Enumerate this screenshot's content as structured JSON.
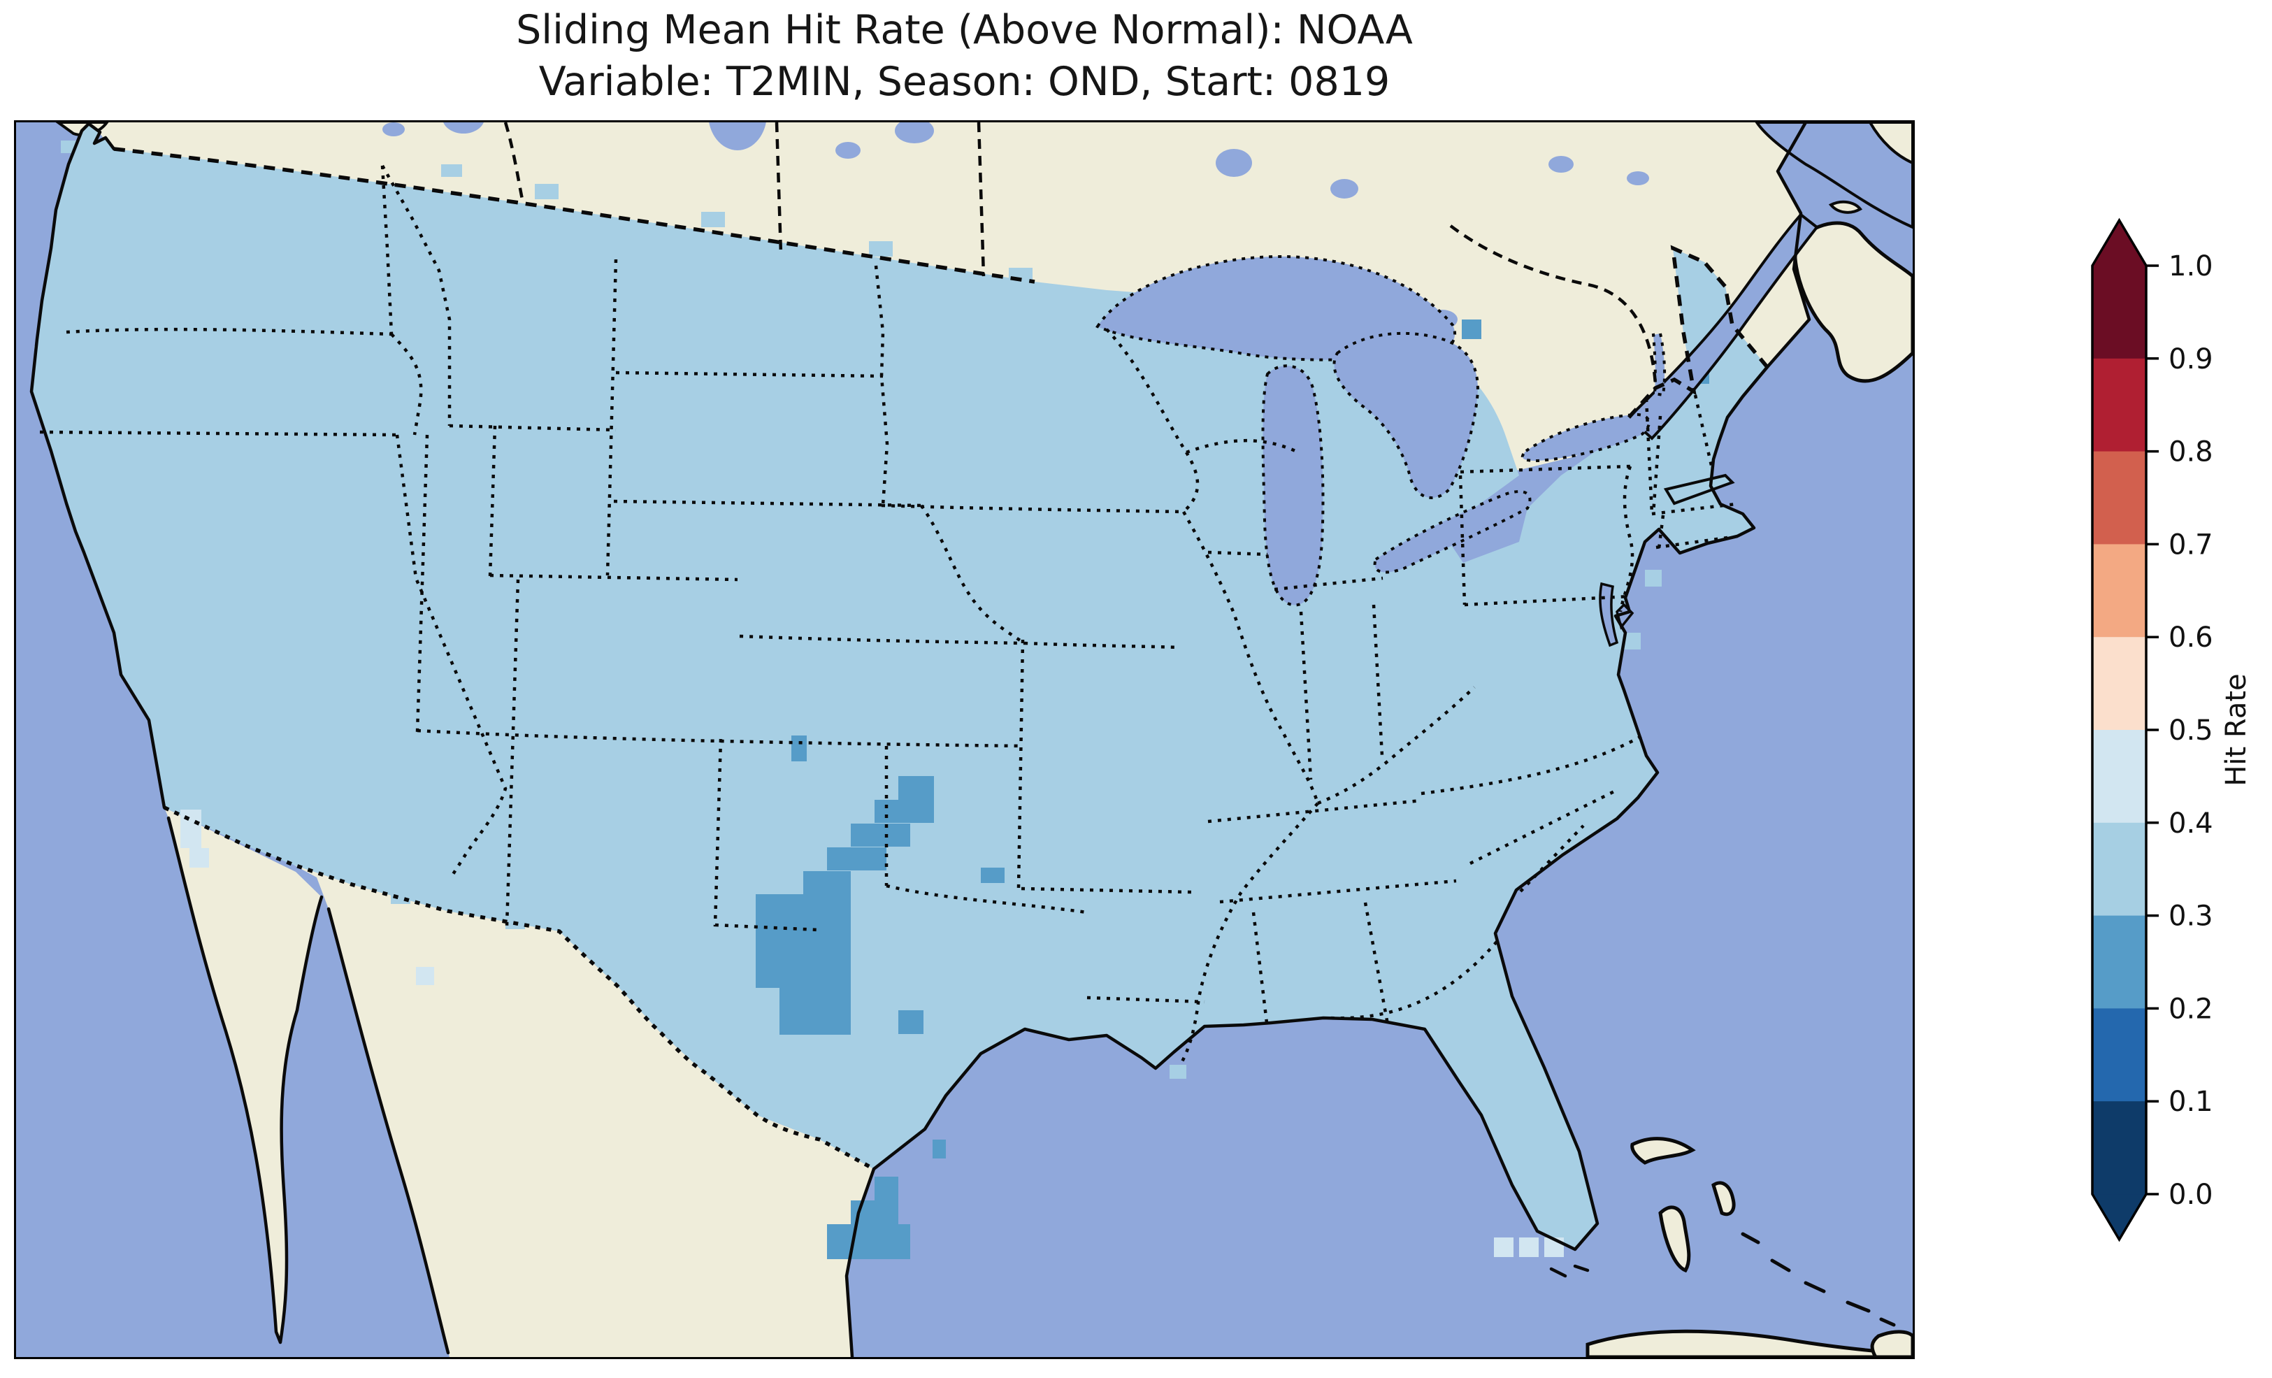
{
  "title": {
    "line1": "Sliding Mean Hit Rate (Above Normal): NOAA",
    "line2": "Variable: T2MIN, Season: OND, Start: 0819"
  },
  "colorbar": {
    "label": "Hit Rate",
    "ticks": [
      "1.0",
      "0.9",
      "0.8",
      "0.7",
      "0.6",
      "0.5",
      "0.4",
      "0.3",
      "0.2",
      "0.1",
      "0.0"
    ],
    "segment_colors_top_to_bottom": [
      "#6B0D24",
      "#B01F32",
      "#D2604E",
      "#F3A983",
      "#FBDFCC",
      "#D2E6F1",
      "#A6CFE3",
      "#569CC8",
      "#2468AE",
      "#0E3B69"
    ],
    "over_arrow_color": "#6B0D24",
    "under_arrow_color": "#0E3B69"
  },
  "map": {
    "colors": {
      "ocean": "#90A8DB",
      "land": "#EFEDDA",
      "us_base": "#A7CFE4",
      "hit_02_03": "#569CC8",
      "hit_04_05": "#D2E6F1",
      "line": "#0A0A0A"
    },
    "patches": {
      "dark": [
        [
          1262,
          935,
          51,
          67
        ],
        [
          1228,
          969,
          85,
          33
        ],
        [
          1194,
          1003,
          85,
          33
        ],
        [
          1160,
          1037,
          85,
          33
        ],
        [
          1126,
          1071,
          68,
          33
        ],
        [
          1058,
          1104,
          136,
          67
        ],
        [
          1092,
          1171,
          102,
          134
        ],
        [
          1058,
          1171,
          34,
          67
        ],
        [
          1109,
          877,
          22,
          37
        ],
        [
          1380,
          1066,
          34,
          22
        ],
        [
          1262,
          1270,
          36,
          34
        ],
        [
          1228,
          1508,
          34,
          68
        ],
        [
          1194,
          1542,
          68,
          34
        ],
        [
          1160,
          1576,
          119,
          50
        ],
        [
          1311,
          1455,
          19,
          27
        ],
        [
          2401,
          337,
          21,
          37
        ],
        [
          2068,
          282,
          28,
          28
        ]
      ],
      "light": [
        [
          2114,
          1595,
          28,
          28
        ],
        [
          2150,
          1595,
          28,
          28
        ],
        [
          2186,
          1595,
          28,
          28
        ],
        [
          235,
          983,
          30,
          55
        ],
        [
          248,
          1038,
          28,
          28
        ],
        [
          572,
          1208,
          26,
          26
        ]
      ],
      "base": [
        [
          742,
          88,
          34,
          22
        ],
        [
          980,
          128,
          34,
          22
        ],
        [
          1220,
          170,
          34,
          22
        ],
        [
          1420,
          208,
          34,
          20
        ],
        [
          608,
          60,
          30,
          18
        ],
        [
          64,
          26,
          24,
          18
        ],
        [
          44,
          200,
          22,
          22
        ],
        [
          26,
          320,
          22,
          22
        ],
        [
          188,
          830,
          22,
          22
        ],
        [
          536,
          1098,
          28,
          20
        ],
        [
          700,
          1136,
          28,
          18
        ],
        [
          2420,
          560,
          22,
          22
        ],
        [
          2360,
          560,
          26,
          26
        ],
        [
          2330,
          640,
          24,
          24
        ],
        [
          2300,
          730,
          24,
          24
        ],
        [
          1650,
          1348,
          24,
          20
        ]
      ]
    }
  },
  "chart_data": {
    "type": "heatmap",
    "title": "Sliding Mean Hit Rate (Above Normal): NOAA",
    "subtitle": "Variable: T2MIN, Season: OND, Start: 0819",
    "metric": "Sliding Mean Hit Rate (Above Normal)",
    "source": "NOAA",
    "variable": "T2MIN",
    "season": "OND",
    "start": "0819",
    "region": "Contiguous United States (CONUS)",
    "colorbar_label": "Hit Rate",
    "levels": [
      0.0,
      0.1,
      0.2,
      0.3,
      0.4,
      0.5,
      0.6,
      0.7,
      0.8,
      0.9,
      1.0
    ],
    "colormap": "discrete RdBu reversed, 10 bins, pointed over/under arrows",
    "legend_position": "right",
    "grid": "off",
    "values_summary": [
      {
        "area": "Most of CONUS",
        "hit_rate": "0.3-0.4"
      },
      {
        "area": "Band across western Oklahoma into north-central Texas",
        "hit_rate": "0.2-0.3"
      },
      {
        "area": "Southern tip of Texas (lower Rio Grande Valley)",
        "hit_rate": "0.2-0.3"
      },
      {
        "area": "Single cell on coastal southern Maine and near northern Vermont",
        "hit_rate": "0.2-0.3"
      },
      {
        "area": "Few cells just south of Florida tip and near California-Mexico border",
        "hit_rate": "0.4-0.5"
      }
    ]
  }
}
